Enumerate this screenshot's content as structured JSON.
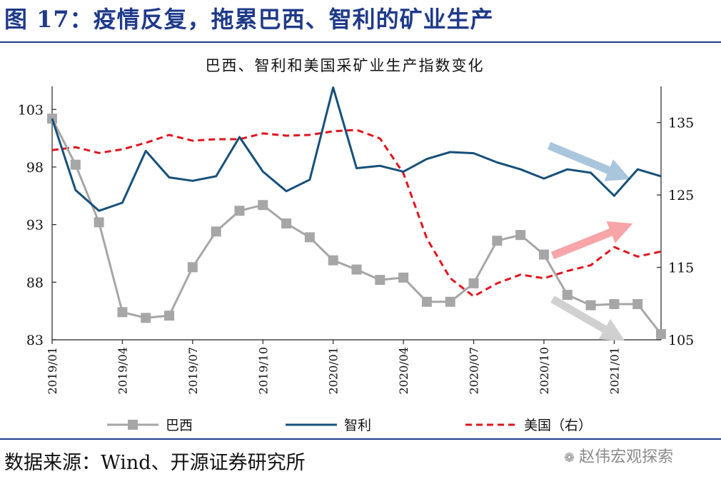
{
  "figure": {
    "title": "图 17：疫情反复，拖累巴西、智利的矿业生产",
    "source": "数据来源：Wind、开源证券研究所",
    "watermark": "赵伟宏观探索",
    "watermark_icon": "wechat-icon"
  },
  "chart_data": {
    "type": "line",
    "title": "巴西、智利和美国采矿业生产指数变化",
    "categories": [
      "2019/01",
      "2019/02",
      "2019/03",
      "2019/04",
      "2019/05",
      "2019/06",
      "2019/07",
      "2019/08",
      "2019/09",
      "2019/10",
      "2019/11",
      "2019/12",
      "2020/01",
      "2020/02",
      "2020/03",
      "2020/04",
      "2020/05",
      "2020/06",
      "2020/07",
      "2020/08",
      "2020/09",
      "2020/10",
      "2020/11",
      "2020/12",
      "2021/01",
      "2021/02",
      "2021/03"
    ],
    "x_tick_labels": [
      "2019/01",
      "2019/04",
      "2019/07",
      "2019/10",
      "2020/01",
      "2020/04",
      "2020/07",
      "2020/10",
      "2021/01"
    ],
    "left_axis": {
      "ylim": [
        83,
        105
      ],
      "ticks": [
        83,
        88,
        93,
        98,
        103
      ]
    },
    "right_axis": {
      "ylim": [
        105,
        140
      ],
      "ticks": [
        105,
        115,
        125,
        135
      ]
    },
    "series": [
      {
        "name": "巴西",
        "axis": "left",
        "color": "#a6a6a6",
        "style": "solid-square-markers",
        "values": [
          102.2,
          98.2,
          93.2,
          85.4,
          84.9,
          85.1,
          89.3,
          92.4,
          94.2,
          94.7,
          93.1,
          91.9,
          89.9,
          89.1,
          88.2,
          88.4,
          86.3,
          86.3,
          87.9,
          91.6,
          92.1,
          90.4,
          86.9,
          86.0,
          86.1,
          86.1,
          83.5
        ]
      },
      {
        "name": "智利",
        "axis": "left",
        "color": "#17507a",
        "style": "solid",
        "values": [
          102.2,
          96.0,
          94.2,
          94.9,
          99.4,
          97.1,
          96.8,
          97.2,
          100.6,
          97.6,
          95.9,
          96.9,
          104.9,
          97.9,
          98.1,
          97.6,
          98.7,
          99.3,
          99.2,
          98.4,
          97.8,
          97.0,
          97.8,
          97.5,
          95.5,
          97.8,
          97.2
        ]
      },
      {
        "name": "美国（右）",
        "axis": "right",
        "color": "#e0141e",
        "style": "dashed",
        "values": [
          131.2,
          131.6,
          130.8,
          131.3,
          132.2,
          133.3,
          132.5,
          132.7,
          132.7,
          133.5,
          133.2,
          133.3,
          133.8,
          134.0,
          132.8,
          128.0,
          119.0,
          113.5,
          111.0,
          112.8,
          114.0,
          113.5,
          114.5,
          115.3,
          117.8,
          116.5,
          117.2
        ]
      }
    ],
    "annotations": [
      {
        "type": "arrow",
        "color": "#a9c6dd",
        "direction": "down-right"
      },
      {
        "type": "arrow",
        "color": "#f7a5a8",
        "direction": "up-right"
      },
      {
        "type": "arrow",
        "color": "#d0d0d0",
        "direction": "down-right"
      }
    ],
    "grid": false,
    "legend_placement": "bottom"
  }
}
